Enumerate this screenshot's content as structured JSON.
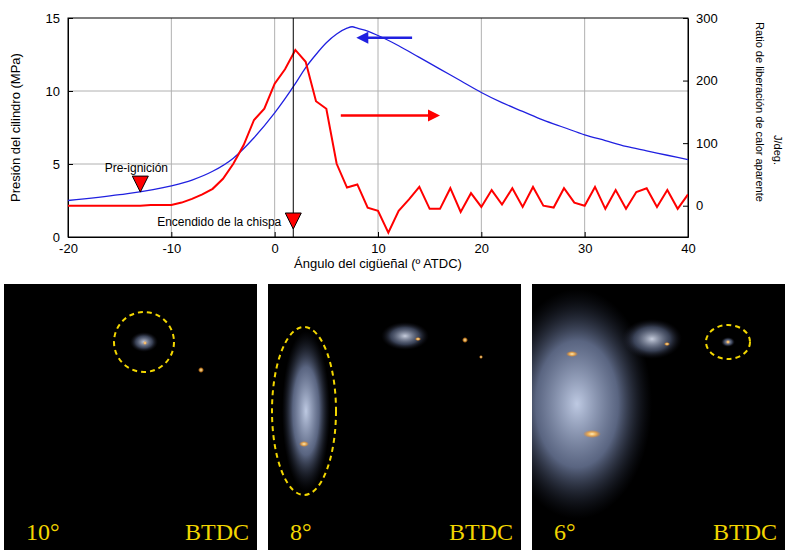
{
  "chart_data": {
    "type": "line",
    "x_label": "Ángulo del cigüeñal (º ATDC)",
    "y_label": "Presión del cilindro (MPa)",
    "y2_label": "Ratio de liberación de calor aparente",
    "y2_unit": "J/deg.",
    "xlim": [
      -20,
      40
    ],
    "xticks": [
      -20,
      -10,
      0,
      10,
      20,
      30,
      40
    ],
    "ylim": [
      0,
      15
    ],
    "yticks": [
      0,
      5,
      10,
      15
    ],
    "y2lim": [
      -50,
      300
    ],
    "y2ticks": [
      0,
      100,
      200,
      300
    ],
    "grid": true,
    "series": [
      {
        "color": "#2020e0",
        "line_style": "solid",
        "x": [
          -20,
          -15,
          -10,
          -8,
          -6,
          -4,
          -2,
          0,
          2,
          3,
          4,
          5,
          6,
          7,
          7.5,
          8,
          9,
          10,
          12,
          14,
          16,
          18,
          20,
          22,
          24,
          26,
          28,
          30,
          32,
          34,
          36,
          38,
          40
        ],
        "values": [
          2.5,
          2.9,
          3.5,
          3.9,
          4.5,
          5.4,
          6.8,
          8.5,
          10.5,
          11.6,
          12.5,
          13.3,
          13.9,
          14.3,
          14.4,
          14.3,
          14.1,
          13.8,
          13.1,
          12.3,
          11.5,
          10.7,
          9.9,
          9.2,
          8.6,
          8.0,
          7.5,
          7.0,
          6.6,
          6.2,
          5.9,
          5.6,
          5.3
        ]
      },
      {
        "color": "#ff0000",
        "line_style": "solid",
        "axis": "y2",
        "x": [
          -20,
          -19,
          -18,
          -17,
          -16,
          -15,
          -14,
          -13,
          -12,
          -11,
          -10,
          -9,
          -8,
          -7,
          -6,
          -5,
          -4,
          -3,
          -2,
          -1,
          0,
          1,
          2,
          3,
          4,
          5,
          6,
          7,
          8,
          9,
          10,
          11,
          12,
          13,
          14,
          15,
          16,
          17,
          18,
          19,
          20,
          21,
          22,
          23,
          24,
          25,
          26,
          27,
          28,
          29,
          30,
          31,
          32,
          33,
          34,
          35,
          36,
          37,
          38,
          39,
          40
        ],
        "values": [
          0,
          0,
          0,
          0,
          0,
          0,
          0,
          0,
          1,
          1,
          1,
          5,
          11,
          18,
          27,
          43,
          67,
          97,
          137,
          155,
          195,
          218,
          249,
          230,
          167,
          155,
          67,
          29,
          34,
          -3,
          -8,
          -43,
          -8,
          10,
          30,
          -5,
          -5,
          28,
          -10,
          20,
          -2,
          25,
          2,
          28,
          -2,
          30,
          0,
          -3,
          28,
          5,
          0,
          30,
          -5,
          25,
          -5,
          22,
          28,
          -2,
          25,
          -5,
          18
        ]
      }
    ],
    "annotations": [
      {
        "text": "Pre-ignición",
        "x": -13,
        "marker": "triangle",
        "color": "#ff0000"
      },
      {
        "text": "Encendido de la chispa",
        "x": 1.8,
        "marker": "triangle",
        "color": "#ff0000"
      }
    ]
  },
  "frames": [
    {
      "angle": "10°",
      "label": "BTDC"
    },
    {
      "angle": "8°",
      "label": "BTDC"
    },
    {
      "angle": "6°",
      "label": "BTDC"
    }
  ]
}
